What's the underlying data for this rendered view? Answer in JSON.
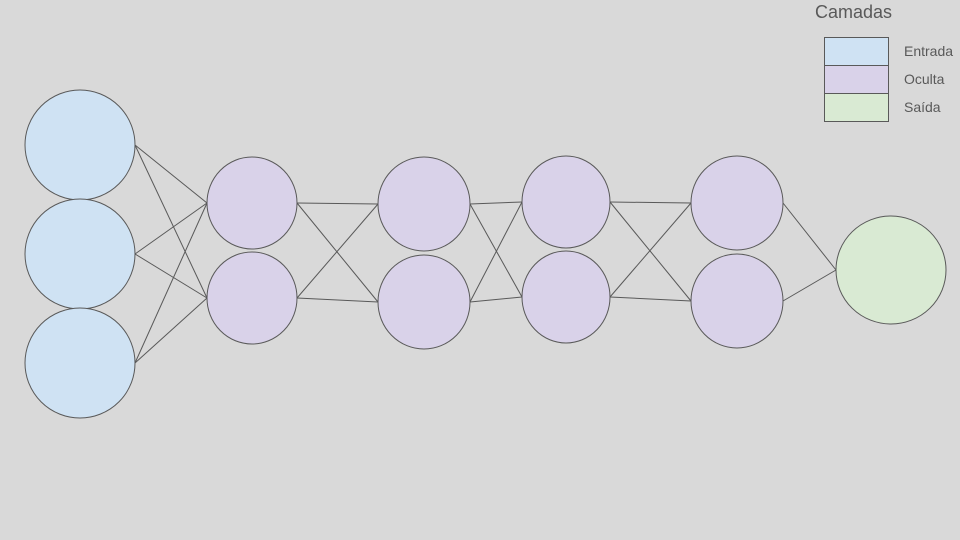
{
  "legend": {
    "title": "Camadas",
    "items": [
      {
        "label": "Entrada",
        "color": "#cfe2f3"
      },
      {
        "label": "Oculta",
        "color": "#d9d2e9"
      },
      {
        "label": "Saída",
        "color": "#d9ead3"
      }
    ]
  },
  "network": {
    "layers": [
      {
        "type": "input",
        "neurons": 3,
        "color": "#cfe2f3"
      },
      {
        "type": "hidden",
        "neurons": 2,
        "color": "#d9d2e9"
      },
      {
        "type": "hidden",
        "neurons": 2,
        "color": "#d9d2e9"
      },
      {
        "type": "hidden",
        "neurons": 2,
        "color": "#d9d2e9"
      },
      {
        "type": "hidden",
        "neurons": 2,
        "color": "#d9d2e9"
      },
      {
        "type": "output",
        "neurons": 1,
        "color": "#d9ead3"
      }
    ],
    "connections": "fully-connected",
    "stroke_color": "#595959"
  }
}
